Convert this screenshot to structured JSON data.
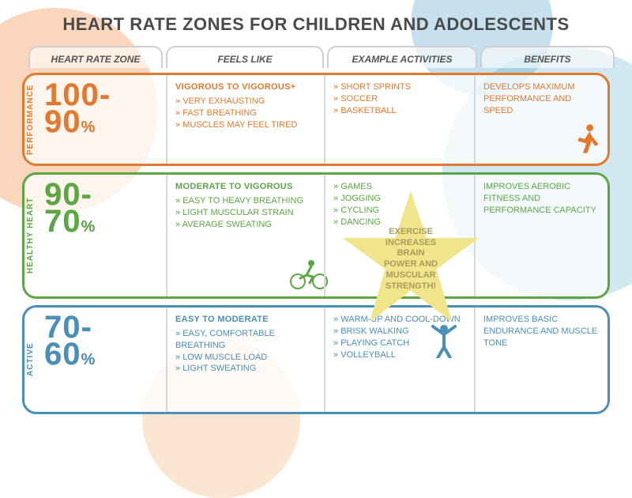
{
  "title": "HEART RATE ZONES FOR CHILDREN AND ADOLESCENTS",
  "columns": [
    "HEART RATE ZONE",
    "FEELS LIKE",
    "EXAMPLE ACTIVITIES",
    "BENEFITS"
  ],
  "star_text": "EXERCISE INCREASES BRAIN POWER AND MUSCULAR STRENGTH!",
  "colors": {
    "title": "#4a4a4a",
    "star_fill": "#f0e58a",
    "star_text": "#a89b5c",
    "bg_orange": "#f08c3e",
    "bg_blue": "#5ba9cc",
    "bg_green": "#8ab84f"
  },
  "zones": [
    {
      "label": "PERFORMANCE",
      "color": "#e3792e",
      "range_top": "100-",
      "range_bottom": "90",
      "pct": "%",
      "feels_title": "VIGOROUS TO VIGOROUS+",
      "feels": [
        "VERY EXHAUSTING",
        "FAST BREATHING",
        "MUSCLES MAY FEEL TIRED"
      ],
      "activities": [
        "SHORT SPRINTS",
        "SOCCER",
        "BASKETBALL"
      ],
      "benefits": "DEVELOPS MAXIMUM PERFORMANCE AND SPEED",
      "icon": "runner"
    },
    {
      "label": "HEALTHY HEART",
      "color": "#5ca644",
      "range_top": "90-",
      "range_bottom": "70",
      "pct": "%",
      "feels_title": "MODERATE TO VIGOROUS",
      "feels": [
        "EASY TO HEAVY BREATHING",
        "LIGHT MUSCULAR STRAIN",
        "AVERAGE SWEATING"
      ],
      "activities": [
        "GAMES",
        "JOGGING",
        "CYCLING",
        "DANCING"
      ],
      "benefits": "IMPROVES AEROBIC FITNESS AND PERFORMANCE CAPACITY",
      "icon": "cyclist"
    },
    {
      "label": "ACTIVE",
      "color": "#4a8fb8",
      "range_top": "70-",
      "range_bottom": "60",
      "pct": "%",
      "feels_title": "EASY TO MODERATE",
      "feels": [
        "EASY, COMFORTABLE BREATHING",
        "LOW MUSCLE LOAD",
        "LIGHT SWEATING"
      ],
      "activities": [
        "WARM-UP AND COOL-DOWN",
        "BRISK WALKING",
        "PLAYING CATCH",
        "VOLLEYBALL"
      ],
      "benefits": "IMPROVES BASIC ENDURANCE AND MUSCLE TONE",
      "icon": "arms-up"
    }
  ]
}
